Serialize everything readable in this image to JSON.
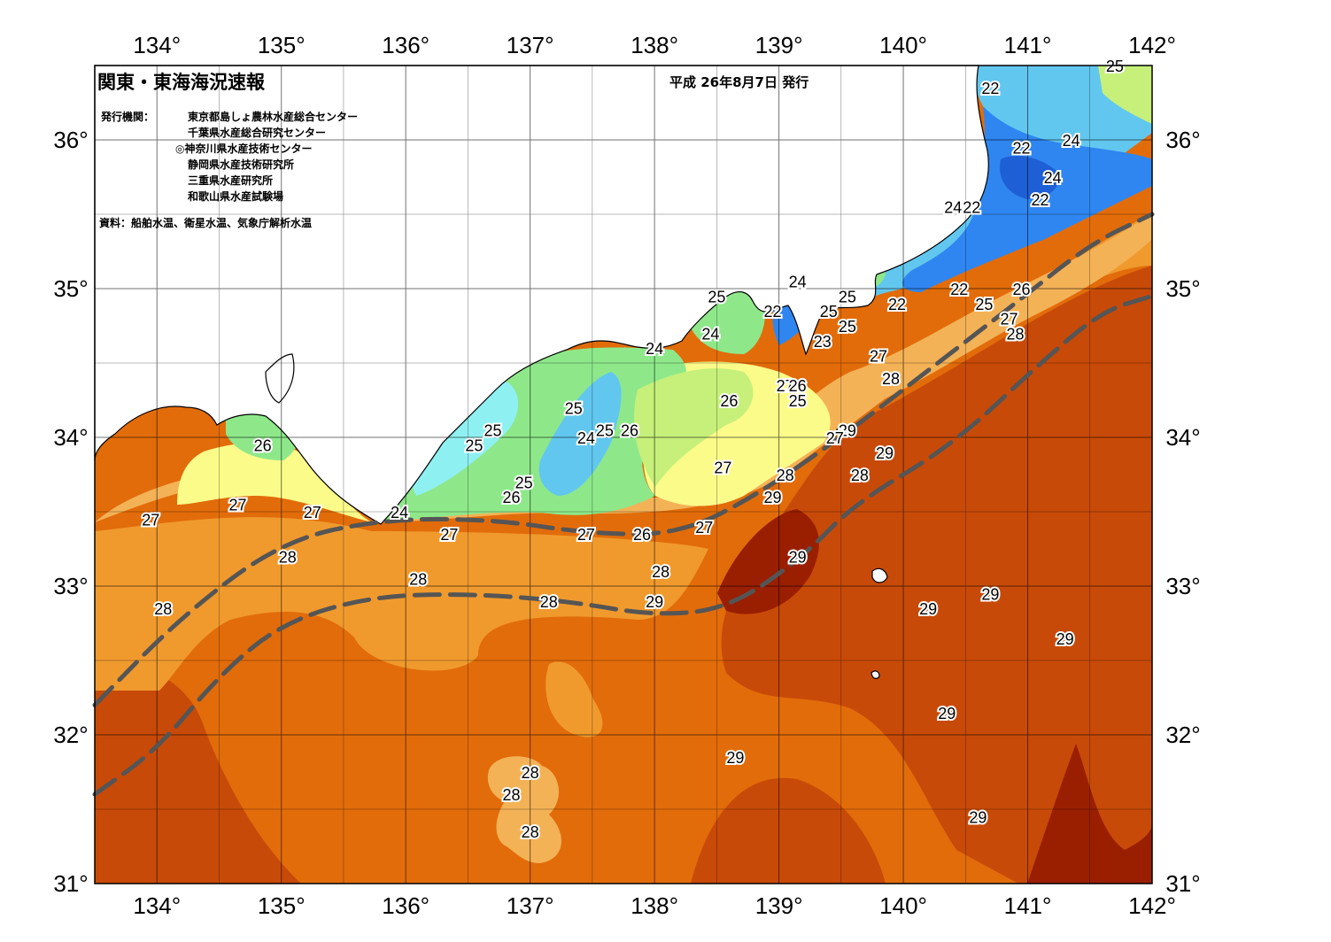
{
  "header": {
    "title": "関東・東海海況速報",
    "issue_date": "平成 26年8月7日 発行",
    "issuers_label": "発行機関：",
    "issuers": [
      "東京都島しょ農林水産総合センター",
      "千葉県水産総合研究センター",
      "◎神奈川県水産技術センター",
      "静岡県水産技術研究所",
      "三重県水産研究所",
      "和歌山県水産試験場"
    ],
    "source": "資料：船舶水温、衛星水温、気象庁解析水温"
  },
  "axes": {
    "lon_ticks": [
      "134°",
      "135°",
      "136°",
      "137°",
      "138°",
      "139°",
      "140°",
      "141°",
      "142°"
    ],
    "lat_ticks": [
      "36°",
      "35°",
      "34°",
      "33°",
      "32°",
      "31°"
    ],
    "lon_range": [
      133.5,
      142.0
    ],
    "lat_range": [
      31.0,
      36.5
    ]
  },
  "temp_labels": [
    {
      "lon": 141.1,
      "lat": 35.6,
      "text": "22"
    },
    {
      "lon": 141.35,
      "lat": 36.0,
      "text": "24"
    },
    {
      "lon": 141.7,
      "lat": 36.5,
      "text": "25"
    },
    {
      "lon": 140.7,
      "lat": 36.35,
      "text": "22"
    },
    {
      "lon": 140.95,
      "lat": 35.95,
      "text": "22"
    },
    {
      "lon": 141.2,
      "lat": 35.75,
      "text": "24"
    },
    {
      "lon": 140.4,
      "lat": 35.55,
      "text": "24"
    },
    {
      "lon": 140.55,
      "lat": 35.55,
      "text": "22"
    },
    {
      "lon": 140.45,
      "lat": 35.0,
      "text": "22"
    },
    {
      "lon": 139.95,
      "lat": 34.9,
      "text": "22"
    },
    {
      "lon": 140.65,
      "lat": 34.9,
      "text": "25"
    },
    {
      "lon": 140.95,
      "lat": 35.0,
      "text": "26"
    },
    {
      "lon": 140.85,
      "lat": 34.8,
      "text": "27"
    },
    {
      "lon": 140.9,
      "lat": 34.7,
      "text": "28"
    },
    {
      "lon": 139.15,
      "lat": 35.05,
      "text": "24"
    },
    {
      "lon": 139.55,
      "lat": 34.95,
      "text": "25"
    },
    {
      "lon": 139.4,
      "lat": 34.85,
      "text": "25"
    },
    {
      "lon": 139.55,
      "lat": 34.75,
      "text": "25"
    },
    {
      "lon": 139.35,
      "lat": 34.65,
      "text": "23"
    },
    {
      "lon": 138.95,
      "lat": 34.85,
      "text": "22"
    },
    {
      "lon": 139.8,
      "lat": 34.55,
      "text": "27"
    },
    {
      "lon": 139.9,
      "lat": 34.4,
      "text": "28"
    },
    {
      "lon": 138.5,
      "lat": 34.95,
      "text": "25"
    },
    {
      "lon": 138.45,
      "lat": 34.7,
      "text": "24"
    },
    {
      "lon": 138.0,
      "lat": 34.6,
      "text": "24"
    },
    {
      "lon": 138.6,
      "lat": 34.25,
      "text": "26"
    },
    {
      "lon": 139.05,
      "lat": 34.35,
      "text": "27"
    },
    {
      "lon": 139.15,
      "lat": 34.35,
      "text": "26"
    },
    {
      "lon": 139.15,
      "lat": 34.25,
      "text": "25"
    },
    {
      "lon": 139.55,
      "lat": 34.05,
      "text": "29"
    },
    {
      "lon": 139.45,
      "lat": 34.0,
      "text": "27"
    },
    {
      "lon": 139.85,
      "lat": 33.9,
      "text": "29"
    },
    {
      "lon": 139.65,
      "lat": 33.75,
      "text": "28"
    },
    {
      "lon": 139.05,
      "lat": 33.75,
      "text": "28"
    },
    {
      "lon": 138.95,
      "lat": 33.6,
      "text": "29"
    },
    {
      "lon": 138.55,
      "lat": 33.8,
      "text": "27"
    },
    {
      "lon": 138.4,
      "lat": 33.4,
      "text": "27"
    },
    {
      "lon": 139.15,
      "lat": 33.2,
      "text": "29"
    },
    {
      "lon": 138.05,
      "lat": 33.1,
      "text": "28"
    },
    {
      "lon": 138.0,
      "lat": 32.9,
      "text": "29"
    },
    {
      "lon": 137.35,
      "lat": 34.2,
      "text": "25"
    },
    {
      "lon": 137.6,
      "lat": 34.05,
      "text": "25"
    },
    {
      "lon": 137.45,
      "lat": 34.0,
      "text": "24"
    },
    {
      "lon": 137.8,
      "lat": 34.05,
      "text": "26"
    },
    {
      "lon": 136.7,
      "lat": 34.05,
      "text": "25"
    },
    {
      "lon": 136.55,
      "lat": 33.95,
      "text": "25"
    },
    {
      "lon": 136.95,
      "lat": 33.7,
      "text": "25"
    },
    {
      "lon": 136.85,
      "lat": 33.6,
      "text": "26"
    },
    {
      "lon": 135.95,
      "lat": 33.5,
      "text": "24"
    },
    {
      "lon": 136.35,
      "lat": 33.35,
      "text": "27"
    },
    {
      "lon": 137.45,
      "lat": 33.35,
      "text": "27"
    },
    {
      "lon": 137.9,
      "lat": 33.35,
      "text": "26"
    },
    {
      "lon": 136.1,
      "lat": 33.05,
      "text": "28"
    },
    {
      "lon": 137.15,
      "lat": 32.9,
      "text": "28"
    },
    {
      "lon": 134.85,
      "lat": 33.95,
      "text": "26"
    },
    {
      "lon": 134.65,
      "lat": 33.55,
      "text": "27"
    },
    {
      "lon": 135.25,
      "lat": 33.5,
      "text": "27"
    },
    {
      "lon": 133.95,
      "lat": 33.45,
      "text": "27"
    },
    {
      "lon": 135.05,
      "lat": 33.2,
      "text": "28"
    },
    {
      "lon": 134.05,
      "lat": 32.85,
      "text": "28"
    },
    {
      "lon": 140.2,
      "lat": 32.85,
      "text": "29"
    },
    {
      "lon": 140.7,
      "lat": 32.95,
      "text": "29"
    },
    {
      "lon": 141.3,
      "lat": 32.65,
      "text": "29"
    },
    {
      "lon": 140.35,
      "lat": 32.15,
      "text": "29"
    },
    {
      "lon": 138.65,
      "lat": 31.85,
      "text": "29"
    },
    {
      "lon": 140.6,
      "lat": 31.45,
      "text": "29"
    },
    {
      "lon": 136.85,
      "lat": 31.6,
      "text": "28"
    },
    {
      "lon": 137.0,
      "lat": 31.75,
      "text": "28"
    },
    {
      "lon": 137.0,
      "lat": 31.35,
      "text": "28"
    }
  ],
  "kuroshio_paths": [
    {
      "name": "north",
      "points": [
        [
          133.5,
          32.2
        ],
        [
          134.2,
          32.8
        ],
        [
          135.0,
          33.3
        ],
        [
          135.8,
          33.45
        ],
        [
          136.7,
          33.45
        ],
        [
          137.5,
          33.35
        ],
        [
          138.2,
          33.35
        ],
        [
          138.8,
          33.6
        ],
        [
          139.5,
          34.0
        ],
        [
          140.2,
          34.45
        ],
        [
          140.9,
          34.9
        ],
        [
          141.5,
          35.3
        ],
        [
          142.0,
          35.5
        ]
      ]
    },
    {
      "name": "south",
      "points": [
        [
          133.5,
          31.6
        ],
        [
          134.0,
          31.9
        ],
        [
          134.5,
          32.4
        ],
        [
          135.0,
          32.75
        ],
        [
          135.7,
          32.93
        ],
        [
          136.5,
          32.95
        ],
        [
          137.3,
          32.9
        ],
        [
          138.0,
          32.8
        ],
        [
          138.6,
          32.85
        ],
        [
          139.2,
          33.2
        ],
        [
          139.6,
          33.55
        ],
        [
          140.4,
          33.95
        ],
        [
          141.1,
          34.5
        ],
        [
          141.6,
          34.85
        ],
        [
          142.0,
          34.95
        ]
      ]
    }
  ],
  "colors": {
    "t22": "#1f5fd6",
    "t23": "#2f86f0",
    "t24": "#62c7ef",
    "t25": "#8ff0f2",
    "t26_green": "#8ee88a",
    "t26_lime": "#c6f07a",
    "t27_yellow": "#fbfb8a",
    "t27_orange": "#f4b257",
    "t28": "#f09a2e",
    "t28_deep": "#e26c0a",
    "t29": "#c84a08",
    "t29_deep": "#9a1f00",
    "land": "#ffffff",
    "kuroshio": "#555555"
  }
}
